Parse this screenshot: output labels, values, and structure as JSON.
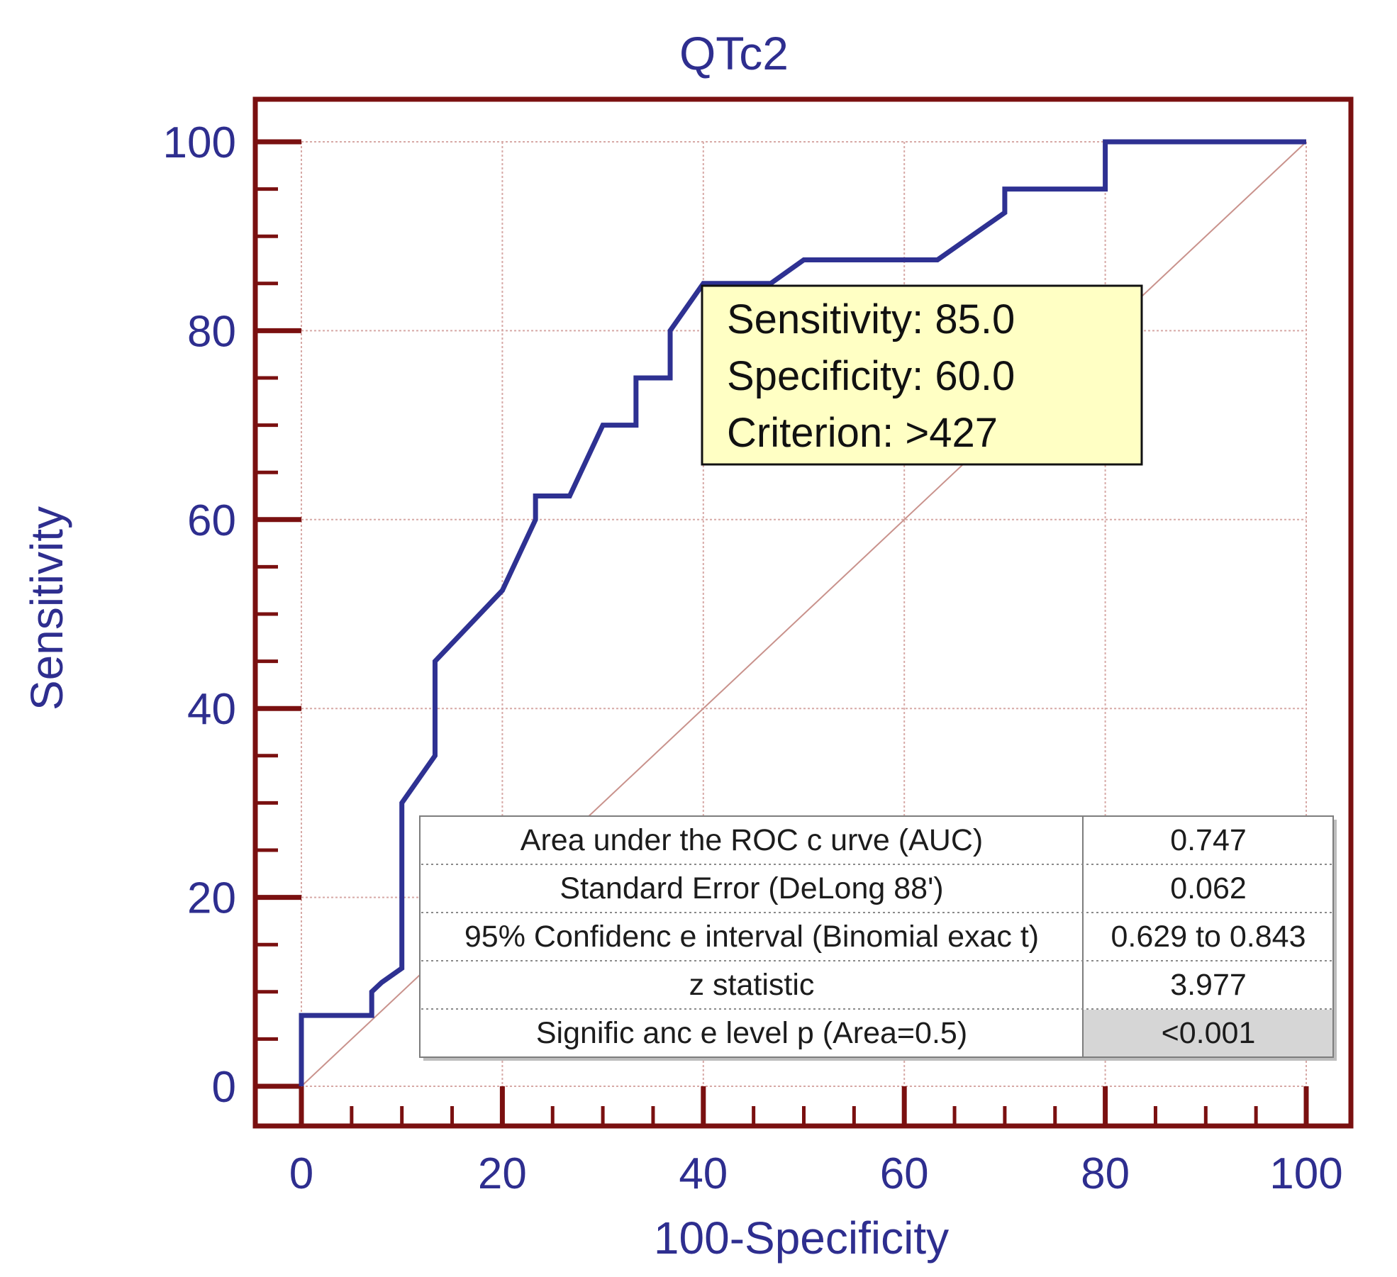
{
  "chart_data": {
    "type": "line",
    "title": "QTc2",
    "xlabel": "100-Specificity",
    "ylabel": "Sensitivity",
    "xlim": [
      0,
      100
    ],
    "ylim": [
      0,
      100
    ],
    "xticks": [
      0,
      20,
      40,
      60,
      80,
      100
    ],
    "yticks": [
      0,
      20,
      40,
      60,
      80,
      100
    ],
    "minor_step": 5,
    "grid": true,
    "series": [
      {
        "name": "ROC curve",
        "color": "#2e3192",
        "x": [
          0,
          0,
          7,
          7,
          8,
          10,
          10,
          13.3,
          13.3,
          20,
          23.3,
          23.3,
          26.7,
          30,
          33.3,
          33.3,
          36.7,
          36.7,
          40,
          46.7,
          50,
          63.3,
          70,
          70,
          80,
          80,
          100
        ],
        "y": [
          0,
          7.5,
          7.5,
          10,
          11,
          12.5,
          30,
          35,
          45,
          52.5,
          60,
          62.5,
          62.5,
          70,
          70,
          75,
          75,
          80,
          85,
          85,
          87.5,
          87.5,
          92.5,
          95,
          95,
          100,
          100
        ]
      },
      {
        "name": "Reference line",
        "color": "#c9928c",
        "x": [
          0,
          100
        ],
        "y": [
          0,
          100
        ]
      }
    ],
    "annotation": {
      "sensitivity": "Sensitivity: 85.0",
      "specificity": "Specificity: 60.0",
      "criterion": "Criterion: >427"
    },
    "stats_table": [
      {
        "label": "Area under the ROC c urve (AUC)",
        "value": "0.747"
      },
      {
        "label": "Standard Error (DeLong 88')",
        "value": "0.062"
      },
      {
        "label": "95% Confidenc e interval (Binomial exac t)",
        "value": "0.629 to 0.843"
      },
      {
        "label": "z statistic",
        "value": "3.977"
      },
      {
        "label": "Signific anc e level p  (Area=0.5)",
        "value": "<0.001",
        "highlight": true
      }
    ]
  },
  "colors": {
    "frame": "#7a1010",
    "grid": "#d7a9a6",
    "text": "#2e2e8f",
    "curve": "#2e3192",
    "tooltip_bg": "#ffffc4",
    "highlight_cell": "#d6d6d6"
  }
}
